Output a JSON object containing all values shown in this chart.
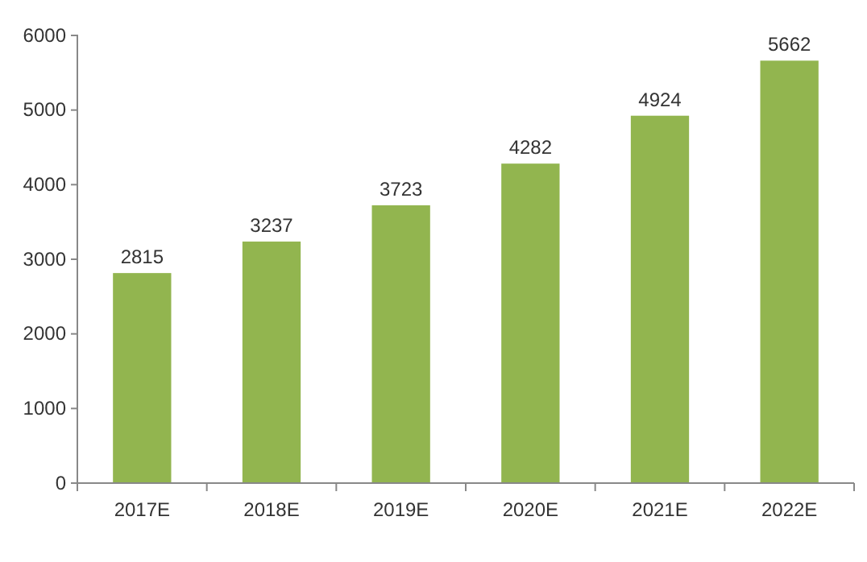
{
  "chart_data": {
    "type": "bar",
    "categories": [
      "2017E",
      "2018E",
      "2019E",
      "2020E",
      "2021E",
      "2022E"
    ],
    "values": [
      2815,
      3237,
      3723,
      4282,
      4924,
      5662
    ],
    "color": "#92b54f",
    "ylim": [
      0,
      6000
    ],
    "yticks": [
      0,
      1000,
      2000,
      3000,
      4000,
      5000,
      6000
    ],
    "data_labels": true
  }
}
